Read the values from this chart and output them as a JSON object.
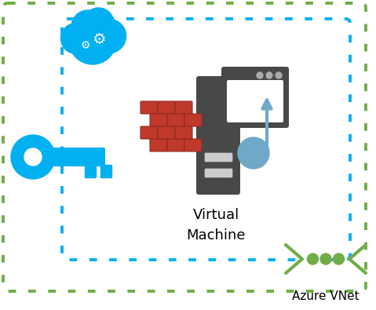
{
  "bg_color": "#ffffff",
  "green": "#70ad47",
  "cyan": "#00b0f0",
  "dark_gray": "#484848",
  "brick_red": "#c0392b",
  "brick_dark": "#922b21",
  "steel_blue": "#70a8c8",
  "vm_label": "Virtual\nMachine",
  "vnet_label": "Azure VNet",
  "figsize": [
    4.79,
    3.95
  ],
  "dpi": 100
}
